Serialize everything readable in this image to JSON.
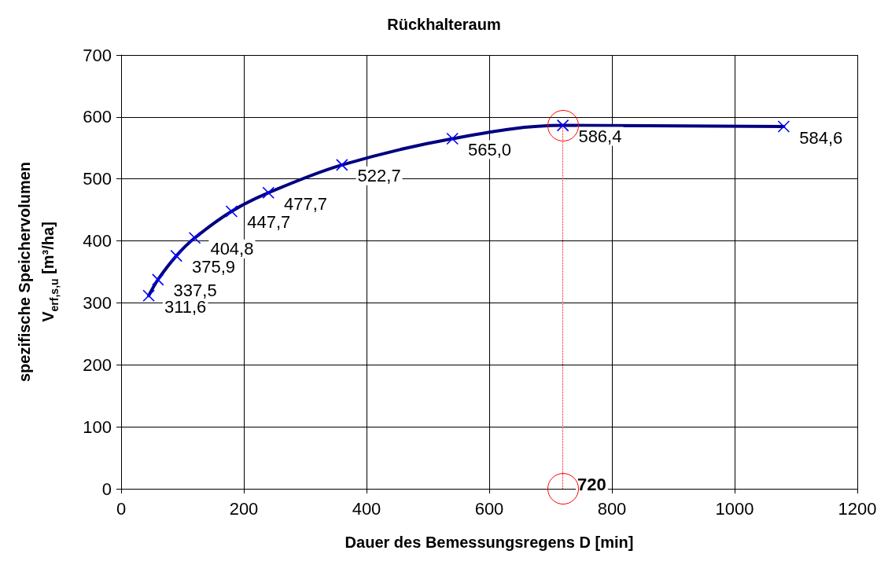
{
  "chart_data": {
    "type": "line",
    "title": "Rückhalteraum",
    "xlabel": "Dauer des Bemessungsregens D [min]",
    "ylabel": "spezifische Speichervolumen\nV$_{erf,s,u}$ [m³/ha]",
    "x": [
      45,
      60,
      90,
      120,
      180,
      240,
      360,
      540,
      720,
      1080
    ],
    "series": [
      {
        "color": "#000080",
        "values": [
          311.6,
          337.5,
          375.9,
          404.8,
          447.7,
          477.7,
          522.7,
          565.0,
          586.4,
          584.6
        ],
        "value_labels": [
          "311,6",
          "337,5",
          "375,9",
          "404,8",
          "447,7",
          "477,7",
          "522,7",
          "565,0",
          "586,4",
          "584,6"
        ]
      }
    ],
    "marker": "cross",
    "xlim": [
      0,
      1200
    ],
    "xticks": [
      0,
      200,
      400,
      600,
      800,
      1000,
      1200
    ],
    "ylim": [
      0,
      700
    ],
    "yticks": [
      0,
      100,
      200,
      300,
      400,
      500,
      600,
      700
    ],
    "grid": true,
    "ref_lines": [
      {
        "axis": "x",
        "value": 720,
        "label": "720",
        "color": "#ff0000",
        "line_style": "dotted"
      }
    ]
  }
}
